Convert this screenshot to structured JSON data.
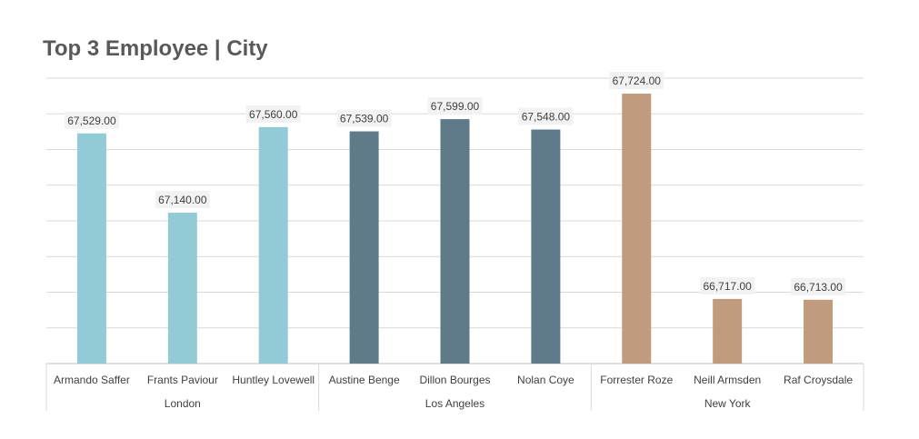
{
  "chart_data": {
    "type": "bar",
    "title": "Top 3 Employee | City",
    "categories": [
      "Armando Saffer",
      "Frants Paviour",
      "Huntley Lovewell",
      "Austine Benge",
      "Dillon Bourges",
      "Nolan Coye",
      "Forrester Roze",
      "Neill Armsden",
      "Raf Croysdale"
    ],
    "groups": [
      {
        "name": "London",
        "start": 0,
        "count": 3,
        "color": "#92CBD6"
      },
      {
        "name": "Los Angeles",
        "start": 3,
        "count": 3,
        "color": "#5F7B89"
      },
      {
        "name": "New York",
        "start": 6,
        "count": 3,
        "color": "#C09B7E"
      }
    ],
    "values": [
      67529,
      67140,
      67560,
      67539,
      67599,
      67548,
      67724,
      66717,
      66713
    ],
    "data_labels": [
      "67,529.00",
      "67,140.00",
      "67,560.00",
      "67,539.00",
      "67,599.00",
      "67,548.00",
      "67,724.00",
      "66,717.00",
      "66,713.00"
    ],
    "ylim": [
      66400,
      67800
    ],
    "y_axis_visible": false,
    "grid": true,
    "legend": "none",
    "xlabel": "",
    "ylabel": ""
  }
}
